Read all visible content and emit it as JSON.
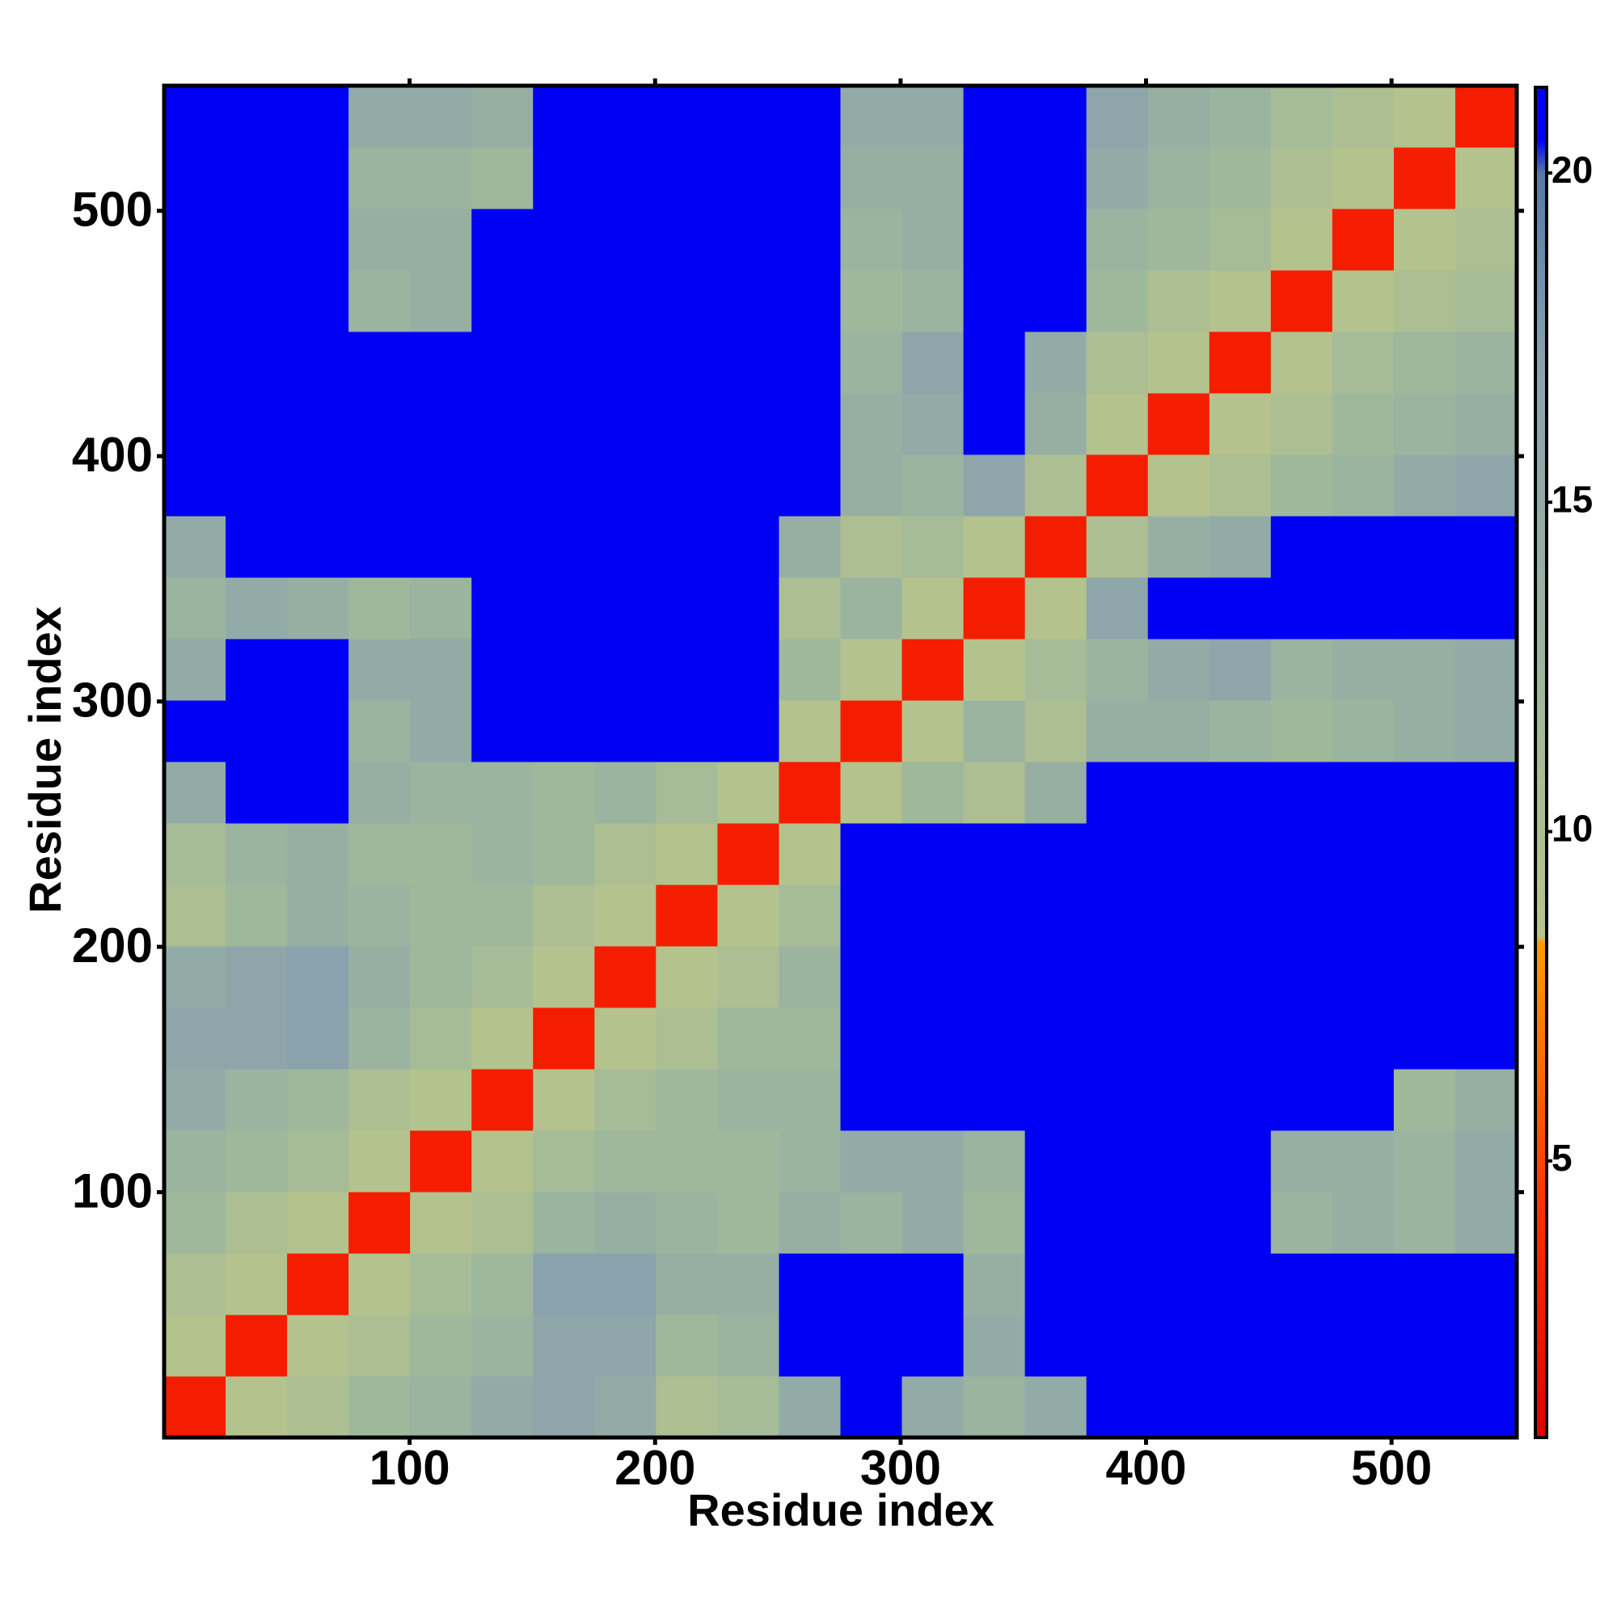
{
  "chart_data": {
    "type": "heatmap",
    "x_label": "Residue index",
    "y_label": "Residue index",
    "xlim": [
      0,
      551
    ],
    "ylim": [
      0,
      551
    ],
    "xticks": [
      100,
      200,
      300,
      400,
      500
    ],
    "yticks": [
      100,
      200,
      300,
      400,
      500
    ],
    "zlim": [
      0.8,
      21.3
    ],
    "zticks": [
      5,
      10,
      15,
      20
    ],
    "colorscale": [
      [
        0.8,
        "#e00000"
      ],
      [
        4,
        "#ff2a00"
      ],
      [
        6,
        "#ff6000"
      ],
      [
        8.3,
        "#ff9a00"
      ],
      [
        8.4,
        "#b8c48a"
      ],
      [
        12,
        "#9fb89c"
      ],
      [
        17,
        "#8aa2ae"
      ],
      [
        20,
        "#5878a8"
      ],
      [
        20.5,
        "#0000f5"
      ],
      [
        21.3,
        "#0000f5"
      ]
    ],
    "z": [
      [
        3,
        9,
        10,
        12,
        13,
        15,
        16,
        15,
        10,
        11,
        15,
        21,
        15,
        13,
        15,
        21,
        21,
        21,
        21,
        21,
        21,
        21
      ],
      [
        9,
        3,
        9,
        10,
        12,
        13,
        16,
        16,
        12,
        13,
        21,
        21,
        21,
        15,
        21,
        21,
        21,
        21,
        21,
        21,
        21,
        21
      ],
      [
        10,
        9,
        3,
        9,
        11,
        12,
        17,
        17,
        14,
        14,
        21,
        21,
        21,
        14,
        21,
        21,
        21,
        21,
        21,
        21,
        21,
        21
      ],
      [
        12,
        10,
        9,
        3,
        9,
        10,
        13,
        14,
        13,
        12,
        14,
        13,
        15,
        12,
        21,
        21,
        21,
        21,
        13,
        14,
        13,
        15
      ],
      [
        13,
        12,
        11,
        9,
        3,
        9,
        11,
        12,
        12,
        12,
        13,
        15,
        15,
        13,
        21,
        21,
        21,
        21,
        14,
        14,
        13,
        15
      ],
      [
        15,
        13,
        12,
        10,
        9,
        3,
        9,
        11,
        12,
        13,
        13,
        21,
        21,
        21,
        21,
        21,
        21,
        21,
        21,
        21,
        12,
        14
      ],
      [
        16,
        16,
        17,
        13,
        11,
        9,
        3,
        9,
        10,
        12,
        12,
        21,
        21,
        21,
        21,
        21,
        21,
        21,
        21,
        21,
        21,
        21
      ],
      [
        15,
        16,
        17,
        14,
        12,
        11,
        9,
        3,
        9,
        10,
        13,
        21,
        21,
        21,
        21,
        21,
        21,
        21,
        21,
        21,
        21,
        21
      ],
      [
        10,
        12,
        14,
        13,
        12,
        12,
        10,
        9,
        3,
        9,
        11,
        21,
        21,
        21,
        21,
        21,
        21,
        21,
        21,
        21,
        21,
        21
      ],
      [
        11,
        13,
        14,
        12,
        12,
        13,
        12,
        10,
        9,
        3,
        9,
        21,
        21,
        21,
        21,
        21,
        21,
        21,
        21,
        21,
        21,
        21
      ],
      [
        15,
        21,
        21,
        14,
        13,
        13,
        12,
        13,
        11,
        9,
        3,
        9,
        12,
        10,
        14,
        21,
        21,
        21,
        21,
        21,
        21,
        21
      ],
      [
        21,
        21,
        21,
        13,
        15,
        21,
        21,
        21,
        21,
        21,
        9,
        3,
        9,
        13,
        10,
        14,
        14,
        13,
        12,
        13,
        14,
        15
      ],
      [
        15,
        21,
        21,
        15,
        15,
        21,
        21,
        21,
        21,
        21,
        12,
        9,
        3,
        9,
        11,
        13,
        15,
        16,
        13,
        14,
        14,
        15
      ],
      [
        13,
        15,
        14,
        12,
        13,
        21,
        21,
        21,
        21,
        21,
        10,
        13,
        9,
        3,
        9,
        16,
        21,
        21,
        21,
        21,
        21,
        21
      ],
      [
        15,
        21,
        21,
        21,
        21,
        21,
        21,
        21,
        21,
        21,
        14,
        10,
        11,
        9,
        3,
        10,
        14,
        15,
        21,
        21,
        21,
        21
      ],
      [
        21,
        21,
        21,
        21,
        21,
        21,
        21,
        21,
        21,
        21,
        21,
        14,
        13,
        16,
        10,
        3,
        9,
        10,
        12,
        13,
        15,
        16
      ],
      [
        21,
        21,
        21,
        21,
        21,
        21,
        21,
        21,
        21,
        21,
        21,
        14,
        15,
        21,
        14,
        9,
        3,
        9,
        10,
        12,
        13,
        14
      ],
      [
        21,
        21,
        21,
        21,
        21,
        21,
        21,
        21,
        21,
        21,
        21,
        13,
        16,
        21,
        15,
        10,
        9,
        3,
        9,
        11,
        12,
        13
      ],
      [
        21,
        21,
        21,
        13,
        14,
        21,
        21,
        21,
        21,
        21,
        21,
        12,
        13,
        21,
        21,
        12,
        10,
        9,
        3,
        9,
        10,
        11
      ],
      [
        21,
        21,
        21,
        14,
        14,
        21,
        21,
        21,
        21,
        21,
        21,
        13,
        14,
        21,
        21,
        13,
        12,
        11,
        9,
        3,
        9,
        10
      ],
      [
        21,
        21,
        21,
        13,
        13,
        12,
        21,
        21,
        21,
        21,
        21,
        14,
        14,
        21,
        21,
        15,
        13,
        12,
        10,
        9,
        3,
        9
      ],
      [
        21,
        21,
        21,
        15,
        15,
        14,
        21,
        21,
        21,
        21,
        21,
        15,
        15,
        21,
        21,
        16,
        14,
        13,
        11,
        10,
        9,
        3
      ]
    ]
  }
}
